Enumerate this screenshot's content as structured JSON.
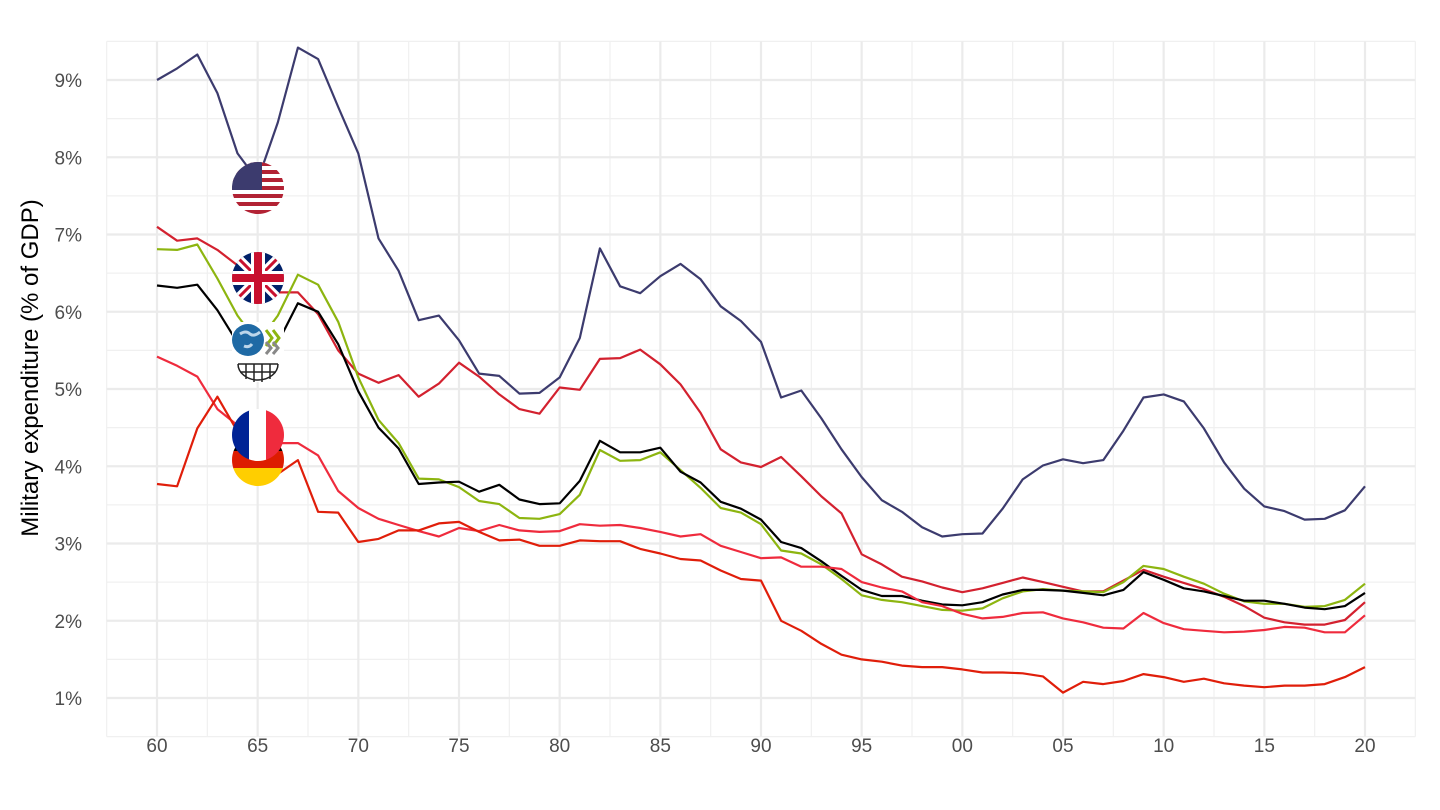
{
  "chart_data": {
    "type": "line",
    "title": "",
    "xlabel": "",
    "ylabel": "Military expenditure (% of GDP)",
    "xlim": [
      1957.5,
      2022.5
    ],
    "ylim": [
      0.5,
      9.5
    ],
    "grid": true,
    "legend": "icons at 1965 next to lines",
    "x_ticks": [
      1960,
      1965,
      1970,
      1975,
      1980,
      1985,
      1990,
      1995,
      2000,
      2005,
      2010,
      2015,
      2020
    ],
    "x_tick_labels": [
      "60",
      "65",
      "70",
      "75",
      "80",
      "85",
      "90",
      "95",
      "00",
      "05",
      "10",
      "15",
      "20"
    ],
    "y_ticks": [
      1,
      2,
      3,
      4,
      5,
      6,
      7,
      8,
      9
    ],
    "y_tick_labels": [
      "1%",
      "2%",
      "3%",
      "4%",
      "5%",
      "6%",
      "7%",
      "8%",
      "9%"
    ],
    "x": [
      1960,
      1961,
      1962,
      1963,
      1964,
      1965,
      1966,
      1967,
      1968,
      1969,
      1970,
      1971,
      1972,
      1973,
      1974,
      1975,
      1976,
      1977,
      1978,
      1979,
      1980,
      1981,
      1982,
      1983,
      1984,
      1985,
      1986,
      1987,
      1988,
      1989,
      1990,
      1991,
      1992,
      1993,
      1994,
      1995,
      1996,
      1997,
      1998,
      1999,
      2000,
      2001,
      2002,
      2003,
      2004,
      2005,
      2006,
      2007,
      2008,
      2009,
      2010,
      2011,
      2012,
      2013,
      2014,
      2015,
      2016,
      2017,
      2018,
      2019,
      2020
    ],
    "series": [
      {
        "name": "United States",
        "icon": "us-flag",
        "color": "#3c3b6e",
        "values": [
          9.0,
          9.15,
          9.33,
          8.83,
          8.05,
          7.7,
          8.45,
          9.42,
          9.27,
          8.65,
          8.05,
          6.95,
          6.53,
          5.89,
          5.95,
          5.63,
          5.2,
          5.17,
          4.94,
          4.95,
          5.15,
          5.66,
          6.82,
          6.33,
          6.24,
          6.46,
          6.62,
          6.42,
          6.07,
          5.88,
          5.61,
          4.89,
          4.98,
          4.62,
          4.22,
          3.86,
          3.56,
          3.41,
          3.21,
          3.09,
          3.12,
          3.13,
          3.45,
          3.83,
          4.01,
          4.09,
          4.04,
          4.08,
          4.46,
          4.89,
          4.93,
          4.84,
          4.49,
          4.05,
          3.71,
          3.48,
          3.42,
          3.31,
          3.32,
          3.43,
          3.74
        ]
      },
      {
        "name": "United Kingdom",
        "icon": "uk-flag",
        "color": "#d3212f",
        "values": [
          7.1,
          6.92,
          6.95,
          6.8,
          6.6,
          6.4,
          6.25,
          6.25,
          5.97,
          5.5,
          5.2,
          5.08,
          5.18,
          4.9,
          5.07,
          5.34,
          5.16,
          4.93,
          4.74,
          4.68,
          5.02,
          4.99,
          5.39,
          5.4,
          5.51,
          5.32,
          5.06,
          4.69,
          4.22,
          4.05,
          3.99,
          4.12,
          3.87,
          3.61,
          3.39,
          2.86,
          2.73,
          2.57,
          2.51,
          2.43,
          2.37,
          2.42,
          2.49,
          2.56,
          2.5,
          2.44,
          2.38,
          2.38,
          2.52,
          2.66,
          2.57,
          2.49,
          2.41,
          2.31,
          2.19,
          2.04,
          1.98,
          1.95,
          1.95,
          2.01,
          2.24
        ]
      },
      {
        "name": "OECD",
        "icon": "oecd-logo",
        "color": "#8db510",
        "values": [
          6.81,
          6.8,
          6.87,
          6.43,
          5.95,
          5.6,
          5.95,
          6.48,
          6.35,
          5.87,
          5.15,
          4.6,
          4.3,
          3.84,
          3.83,
          3.73,
          3.55,
          3.51,
          3.33,
          3.32,
          3.38,
          3.63,
          4.21,
          4.07,
          4.08,
          4.18,
          3.95,
          3.72,
          3.46,
          3.4,
          3.25,
          2.91,
          2.87,
          2.73,
          2.54,
          2.33,
          2.27,
          2.24,
          2.19,
          2.14,
          2.13,
          2.16,
          2.29,
          2.38,
          2.41,
          2.39,
          2.38,
          2.37,
          2.5,
          2.71,
          2.67,
          2.57,
          2.48,
          2.35,
          2.25,
          2.22,
          2.22,
          2.18,
          2.19,
          2.27,
          2.48
        ]
      },
      {
        "name": "World",
        "icon": "world-globe",
        "color": "#000000",
        "values": [
          6.34,
          6.31,
          6.35,
          6.02,
          5.6,
          5.35,
          5.6,
          6.11,
          6.0,
          5.58,
          4.97,
          4.5,
          4.23,
          3.77,
          3.79,
          3.8,
          3.67,
          3.76,
          3.57,
          3.51,
          3.52,
          3.81,
          4.33,
          4.18,
          4.18,
          4.24,
          3.93,
          3.79,
          3.54,
          3.45,
          3.31,
          3.02,
          2.94,
          2.77,
          2.58,
          2.4,
          2.32,
          2.32,
          2.26,
          2.21,
          2.2,
          2.24,
          2.34,
          2.4,
          2.4,
          2.39,
          2.36,
          2.33,
          2.4,
          2.63,
          2.53,
          2.42,
          2.38,
          2.32,
          2.26,
          2.26,
          2.22,
          2.17,
          2.15,
          2.19,
          2.36
        ]
      },
      {
        "name": "France",
        "icon": "france-flag",
        "color": "#ef2b3d",
        "values": [
          5.42,
          5.3,
          5.16,
          4.74,
          4.53,
          4.4,
          4.3,
          4.3,
          4.14,
          3.68,
          3.46,
          3.32,
          3.24,
          3.16,
          3.09,
          3.2,
          3.16,
          3.24,
          3.17,
          3.15,
          3.16,
          3.25,
          3.23,
          3.24,
          3.2,
          3.15,
          3.09,
          3.12,
          2.97,
          2.89,
          2.81,
          2.82,
          2.7,
          2.7,
          2.67,
          2.5,
          2.43,
          2.38,
          2.24,
          2.19,
          2.09,
          2.03,
          2.05,
          2.1,
          2.11,
          2.03,
          1.98,
          1.91,
          1.9,
          2.1,
          1.97,
          1.89,
          1.87,
          1.85,
          1.86,
          1.88,
          1.92,
          1.91,
          1.85,
          1.85,
          2.07
        ]
      },
      {
        "name": "Germany",
        "icon": "germany-flag",
        "color": "#e01e0a",
        "values": [
          3.77,
          3.74,
          4.49,
          4.9,
          4.45,
          4.1,
          3.9,
          4.08,
          3.41,
          3.4,
          3.02,
          3.06,
          3.17,
          3.17,
          3.26,
          3.28,
          3.15,
          3.04,
          3.05,
          2.97,
          2.97,
          3.04,
          3.03,
          3.03,
          2.93,
          2.87,
          2.8,
          2.78,
          2.65,
          2.54,
          2.52,
          2.0,
          1.87,
          1.7,
          1.56,
          1.5,
          1.47,
          1.42,
          1.4,
          1.4,
          1.37,
          1.33,
          1.33,
          1.32,
          1.28,
          1.07,
          1.21,
          1.18,
          1.22,
          1.31,
          1.27,
          1.21,
          1.25,
          1.19,
          1.16,
          1.14,
          1.16,
          1.16,
          1.18,
          1.27,
          1.4
        ]
      }
    ]
  }
}
